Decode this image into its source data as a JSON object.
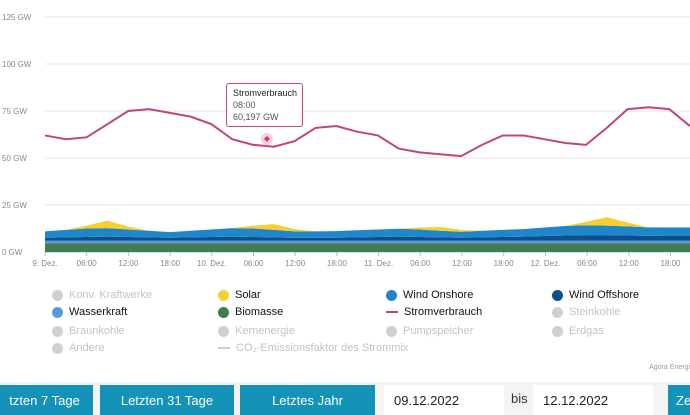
{
  "chart_data": {
    "type": "area",
    "ylim": [
      0,
      125
    ],
    "y_ticks": [
      "0 GW",
      "25 GW",
      "50 GW",
      "75 GW",
      "100 GW",
      "125 GW"
    ],
    "x_ticks": [
      "9. Dez.",
      "06:00",
      "12:00",
      "18:00",
      "10. Dez.",
      "06:00",
      "12:00",
      "18:00",
      "11. Dez.",
      "06:00",
      "12:00",
      "18:00",
      "12. Dez.",
      "06:00",
      "12:00",
      "18:00"
    ],
    "grid": true,
    "x_hours": [
      0,
      3,
      6,
      9,
      12,
      15,
      18,
      21,
      24,
      27,
      30,
      33,
      36,
      39,
      42,
      45,
      48,
      51,
      54,
      57,
      60,
      63,
      66,
      69,
      72,
      75,
      78,
      81,
      84,
      87,
      90,
      93
    ],
    "series": [
      {
        "name": "Biomasse",
        "color": "#3f7d4e",
        "values": [
          4.5,
          4.5,
          4.5,
          4.5,
          4.5,
          4.5,
          4.5,
          4.5,
          4.5,
          4.5,
          4.5,
          4.5,
          4.5,
          4.5,
          4.5,
          4.5,
          4.5,
          4.5,
          4.5,
          4.5,
          4.5,
          4.5,
          4.5,
          4.5,
          4.5,
          4.5,
          4.5,
          4.5,
          4.5,
          4.5,
          4.5,
          4.5
        ]
      },
      {
        "name": "Wasserkraft",
        "color": "#5b9bd5",
        "values": [
          1.5,
          1.5,
          1.5,
          1.5,
          1.5,
          1.5,
          1.5,
          1.5,
          1.5,
          1.5,
          1.5,
          1.5,
          1.5,
          1.5,
          1.5,
          1.5,
          1.5,
          1.5,
          1.5,
          1.5,
          1.5,
          1.5,
          1.5,
          1.5,
          1.5,
          1.5,
          1.5,
          1.5,
          1.5,
          1.5,
          1.5,
          1.5
        ]
      },
      {
        "name": "Wind Offshore",
        "color": "#0d4f8b",
        "values": [
          1.5,
          1.8,
          2.0,
          2.2,
          2.0,
          1.8,
          1.6,
          1.8,
          2.0,
          2.2,
          2.0,
          1.8,
          1.5,
          1.5,
          1.6,
          1.8,
          2.0,
          2.2,
          2.0,
          1.8,
          1.6,
          1.8,
          2.0,
          2.2,
          2.5,
          2.8,
          3.0,
          3.0,
          2.8,
          2.6,
          2.5,
          2.5
        ]
      },
      {
        "name": "Wind Onshore",
        "color": "#1f86cc",
        "values": [
          3.5,
          4.0,
          4.5,
          4.5,
          4.0,
          3.5,
          3.0,
          3.5,
          4.0,
          4.5,
          4.5,
          4.0,
          3.5,
          3.5,
          3.5,
          3.8,
          4.0,
          4.2,
          4.0,
          3.5,
          3.2,
          3.5,
          3.8,
          4.0,
          4.5,
          5.0,
          5.2,
          5.0,
          4.8,
          4.5,
          4.5,
          4.5
        ]
      },
      {
        "name": "Solar",
        "color": "#f5d02e",
        "values": [
          0,
          0,
          1.5,
          4.0,
          1.5,
          0,
          0,
          0,
          0,
          0,
          1.5,
          3.0,
          1.2,
          0,
          0,
          0,
          0,
          0,
          1.0,
          2.0,
          1.0,
          0,
          0,
          0,
          0,
          0,
          1.8,
          4.5,
          2.0,
          0,
          0,
          0
        ]
      },
      {
        "name": "Stromverbrauch",
        "color": "#c2437f",
        "values": [
          62,
          60,
          61,
          68,
          75,
          76,
          74,
          72,
          68,
          60,
          57,
          56,
          59,
          66,
          67,
          64,
          62,
          55,
          53,
          52,
          51,
          57,
          62,
          62,
          60,
          58,
          57,
          66,
          76,
          77,
          76,
          67
        ]
      }
    ]
  },
  "tooltip": {
    "title": "Stromverbrauch",
    "time": "08:00",
    "value": "60,197 GW"
  },
  "legend": [
    {
      "label": "Konv. Kraftwerke",
      "color": "#d0d0d0",
      "shape": "dot",
      "active": false
    },
    {
      "label": "Solar",
      "color": "#f5d02e",
      "shape": "dot",
      "active": true
    },
    {
      "label": "Wind Onshore",
      "color": "#1f86cc",
      "shape": "dot",
      "active": true
    },
    {
      "label": "Wind Offshore",
      "color": "#0d4f8b",
      "shape": "dot",
      "active": true
    },
    {
      "label": "Wasserkraft",
      "color": "#5b9bd5",
      "shape": "dot",
      "active": true
    },
    {
      "label": "Biomasse",
      "color": "#3f7d4e",
      "shape": "dot",
      "active": true
    },
    {
      "label": "Stromverbrauch",
      "color": "#c2437f",
      "shape": "line",
      "active": true
    },
    {
      "label": "Steinkohle",
      "color": "#d0d0d0",
      "shape": "dot",
      "active": false
    },
    {
      "label": "Braunkohle",
      "color": "#d0d0d0",
      "shape": "dot",
      "active": false
    },
    {
      "label": "Kernenergie",
      "color": "#d0d0d0",
      "shape": "dot",
      "active": false
    },
    {
      "label": "Pumpspeicher",
      "color": "#d0d0d0",
      "shape": "dot",
      "active": false
    },
    {
      "label": "Erdgas",
      "color": "#d0d0d0",
      "shape": "dot",
      "active": false
    },
    {
      "label": "Andere",
      "color": "#d0d0d0",
      "shape": "dot",
      "active": false
    },
    {
      "label": "CO₂-Emissionsfaktor des Strommix",
      "color": "#d0d0d0",
      "shape": "line",
      "active": false
    }
  ],
  "credit": "Agora Energi",
  "controls": {
    "btn_7": "tzten 7 Tage",
    "btn_31": "Letzten 31 Tage",
    "btn_year": "Letztes Jahr",
    "from_date": "09.12.2022",
    "bis": "bis",
    "to_date": "12.12.2022",
    "btn_ze": "Ze"
  }
}
